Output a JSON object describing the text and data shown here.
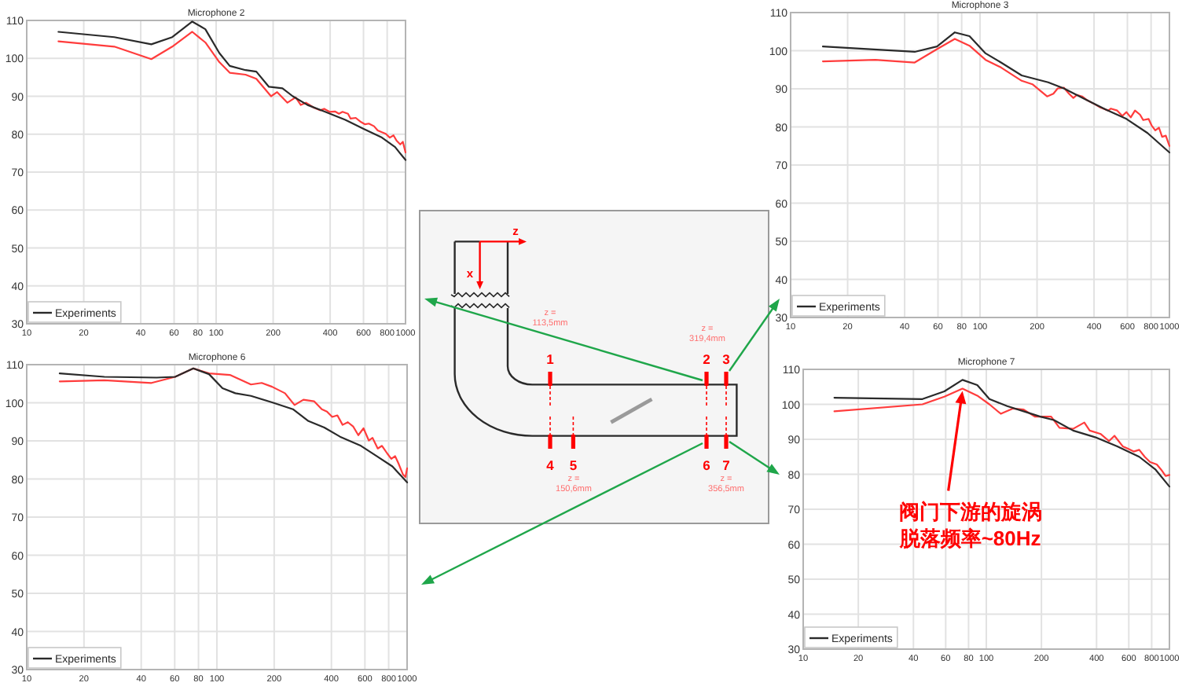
{
  "chart_data": [
    {
      "type": "line",
      "title": "Microphone 2",
      "log": "x",
      "xlim": [
        10,
        1000
      ],
      "ylim": [
        30,
        110
      ],
      "xticks": [
        10,
        20,
        40,
        60,
        80,
        100,
        200,
        400,
        600,
        800,
        1000
      ],
      "yticks": [
        30,
        40,
        50,
        60,
        70,
        80,
        90,
        100,
        110
      ],
      "grid": true,
      "legend": "bottom left",
      "series": [
        {
          "color": "#ff3c3c",
          "x": [
            14.7,
            29,
            45.5,
            58.7,
            74.8,
            87.7,
            104,
            118,
            143,
            163,
            195,
            210,
            238,
            263,
            280,
            298,
            328,
            354,
            372,
            397,
            424,
            445,
            465,
            497,
            513,
            546,
            582,
            612,
            640,
            682,
            713,
            751,
            786,
            826,
            864,
            897,
            938,
            968,
            1000
          ],
          "values": [
            104.5,
            103.1,
            99.8,
            103.1,
            107,
            104.2,
            99,
            96.2,
            95.7,
            94.6,
            90,
            91.1,
            88.3,
            89.7,
            87.7,
            88.3,
            87,
            86.3,
            86.7,
            85.9,
            86,
            85.4,
            85.9,
            85.4,
            84.1,
            84.3,
            83.2,
            82.6,
            82.8,
            82.1,
            81,
            80.5,
            80.1,
            79.1,
            79.7,
            78.3,
            77.3,
            78,
            75.2
          ]
        },
        {
          "name": "Experiments",
          "color": "#2a2a2a",
          "x": [
            14.7,
            29,
            45.5,
            58.7,
            74.8,
            87.7,
            104,
            118,
            143,
            163,
            190,
            224,
            254,
            304,
            372,
            481,
            601,
            751,
            881,
            1000
          ],
          "values": [
            107,
            105.6,
            103.7,
            105.6,
            109.7,
            107.7,
            101.4,
            98,
            96.9,
            96.5,
            92.5,
            92.1,
            90,
            87.7,
            86,
            83.8,
            81.4,
            79.1,
            76.6,
            73.2
          ]
        }
      ]
    },
    {
      "type": "line",
      "title": "Microphone 3",
      "log": "x",
      "xlim": [
        10,
        1000
      ],
      "ylim": [
        30,
        110
      ],
      "xticks": [
        10,
        20,
        40,
        60,
        80,
        100,
        200,
        400,
        600,
        800,
        1000
      ],
      "yticks": [
        30,
        40,
        50,
        60,
        70,
        80,
        90,
        100,
        110
      ],
      "grid": true,
      "legend": "bottom left",
      "series": [
        {
          "color": "#ff3c3c",
          "x": [
            14.8,
            28,
            45.2,
            59.3,
            73.6,
            88,
            107,
            129,
            166,
            189,
            226,
            244,
            257,
            277,
            295,
            311,
            325,
            346,
            368,
            405,
            432,
            475,
            491,
            530,
            564,
            593,
            625,
            658,
            700,
            727,
            776,
            805,
            842,
            881,
            915,
            957,
            1000
          ],
          "values": [
            97.2,
            97.6,
            96.9,
            100.4,
            103.1,
            101.3,
            97.6,
            95.6,
            92.1,
            91.2,
            88,
            88.7,
            90.1,
            90.3,
            88.7,
            87.6,
            88.4,
            88,
            87,
            85.9,
            85.1,
            84.3,
            84.8,
            84.3,
            82.9,
            83.9,
            82.5,
            84.3,
            83.2,
            81.8,
            82.1,
            80.4,
            79.1,
            79.8,
            77.4,
            77.7,
            75
          ]
        },
        {
          "name": "Experiments",
          "color": "#2a2a2a",
          "x": [
            14.8,
            45.2,
            59.3,
            73.6,
            88,
            107,
            129,
            166,
            229,
            277,
            357,
            460,
            593,
            766,
            1000
          ],
          "values": [
            101.1,
            99.7,
            101.1,
            104.8,
            103.8,
            99.3,
            96.9,
            93.5,
            91.7,
            90.1,
            87.3,
            84.6,
            82.1,
            78.4,
            73.3
          ]
        }
      ]
    },
    {
      "type": "other",
      "annotations": [
        "z",
        "x",
        "1",
        "2",
        "3",
        "4",
        "5",
        "6",
        "7",
        "z =\n113,5mm",
        "z =\n319,4mm",
        "z =\n150,6mm",
        "z =\n356,5mm"
      ]
    },
    {
      "type": "line",
      "title": "Microphone 6",
      "log": "x",
      "xlim": [
        10,
        1000
      ],
      "ylim": [
        30,
        110
      ],
      "xticks": [
        10,
        20,
        40,
        60,
        80,
        100,
        200,
        400,
        600,
        800,
        1000
      ],
      "yticks": [
        30,
        40,
        50,
        60,
        70,
        80,
        90,
        100,
        110
      ],
      "grid": true,
      "legend": "bottom left",
      "series": [
        {
          "color": "#ff3c3c",
          "x": [
            14.9,
            25.6,
            45.3,
            60.3,
            75.2,
            90.9,
            117,
            151,
            172,
            195,
            228,
            256,
            285,
            324,
            356,
            379,
            404,
            430,
            458,
            488,
            520,
            554,
            590,
            629,
            658,
            701,
            738,
            786,
            826,
            865,
            904,
            951,
            980,
            1000
          ],
          "values": [
            105.6,
            105.9,
            105.2,
            106.8,
            109,
            107.7,
            107.3,
            104.8,
            105.2,
            104.2,
            102.5,
            99.4,
            100.8,
            100.4,
            98.3,
            97.7,
            96.3,
            96.7,
            94.2,
            94.9,
            93.8,
            91.5,
            93.3,
            90.1,
            90.8,
            88,
            88.7,
            86.7,
            85.3,
            86,
            83.9,
            81.2,
            80.5,
            82.8
          ]
        },
        {
          "name": "Experiments",
          "color": "#2a2a2a",
          "x": [
            14.9,
            25.6,
            48.2,
            60.3,
            75.2,
            90.9,
            107,
            125,
            151,
            195,
            251,
            303,
            367,
            444,
            572,
            692,
            837,
            1000
          ],
          "values": [
            107.7,
            106.8,
            106.6,
            106.8,
            109,
            107.5,
            103.8,
            102.5,
            101.8,
            100.1,
            98.3,
            95.2,
            93.5,
            91.1,
            88.7,
            86,
            83.3,
            79.1
          ]
        }
      ]
    },
    {
      "type": "line",
      "title": "Microphone 7",
      "log": "x",
      "xlim": [
        10,
        1000
      ],
      "ylim": [
        30,
        110
      ],
      "xticks": [
        10,
        20,
        40,
        60,
        80,
        100,
        200,
        400,
        600,
        800,
        1000
      ],
      "yticks": [
        30,
        40,
        50,
        60,
        70,
        80,
        90,
        100,
        110
      ],
      "grid": true,
      "legend": "bottom left",
      "annotations": [
        {
          "text": "阀门下游的旋涡脱落频率~80Hz",
          "x": 74.1,
          "y": 104.5
        }
      ],
      "series": [
        {
          "color": "#ff3c3c",
          "x": [
            14.8,
            44.8,
            59,
            74.1,
            89.3,
            104,
            120,
            140,
            160,
            184,
            226,
            251,
            298,
            343,
            367,
            422,
            468,
            501,
            556,
            595,
            638,
            684,
            733,
            785,
            853,
            902,
            953,
            1000
          ],
          "values": [
            98,
            100,
            102.2,
            104.5,
            102.5,
            100,
            97.3,
            98.8,
            98.5,
            96.5,
            96.5,
            93.3,
            93,
            94.8,
            92.5,
            91.5,
            89.5,
            91,
            88,
            87.3,
            86.5,
            87,
            85,
            83.5,
            82.8,
            81.3,
            79.5,
            79.8
          ]
        },
        {
          "name": "Experiments",
          "color": "#2a2a2a",
          "x": [
            14.8,
            44.8,
            59,
            74.1,
            89.3,
            104,
            130,
            160,
            197,
            234,
            298,
            393,
            519,
            684,
            841,
            1000
          ],
          "values": [
            101.9,
            101.5,
            103.7,
            107,
            105.5,
            101.5,
            99.5,
            98,
            96.5,
            95.5,
            92.5,
            90.6,
            88,
            85,
            81.3,
            76.5
          ]
        }
      ]
    }
  ]
}
